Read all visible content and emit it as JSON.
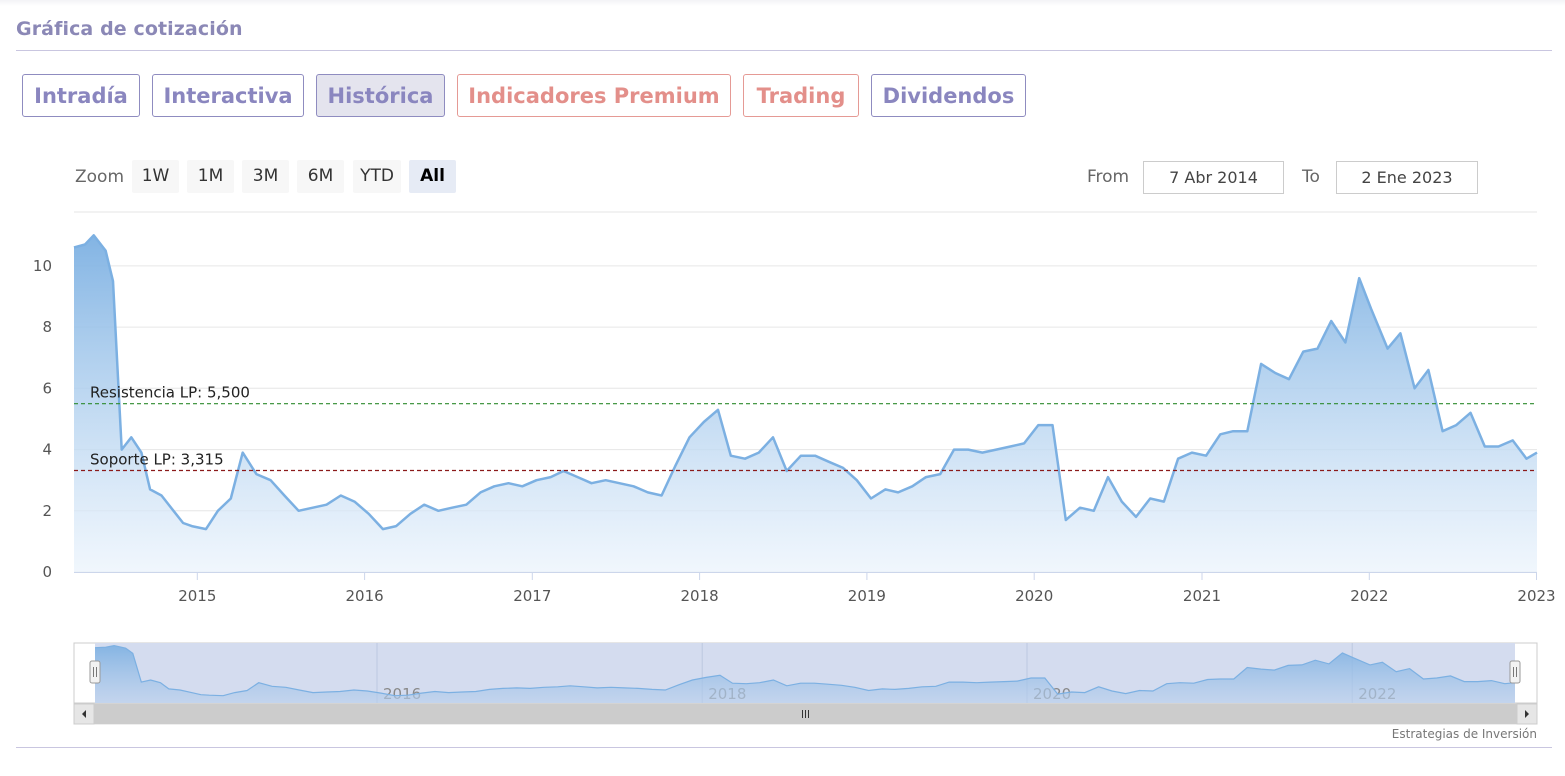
{
  "section": {
    "title": "Gráfica de cotización"
  },
  "tabs": [
    {
      "label": "Intradía",
      "active": false,
      "premium": false
    },
    {
      "label": "Interactiva",
      "active": false,
      "premium": false
    },
    {
      "label": "Histórica",
      "active": true,
      "premium": false
    },
    {
      "label": "Indicadores Premium",
      "active": false,
      "premium": true
    },
    {
      "label": "Trading",
      "active": false,
      "premium": true
    },
    {
      "label": "Dividendos",
      "active": false,
      "premium": false
    }
  ],
  "range_selector": {
    "zoom_label": "Zoom",
    "buttons": [
      "1W",
      "1M",
      "3M",
      "6M",
      "YTD",
      "All"
    ],
    "selected": "All",
    "from_label": "From",
    "from_value": "7 Abr 2014",
    "to_label": "To",
    "to_value": "2 Ene 2023"
  },
  "colors": {
    "accent": "#8a86bf",
    "premium": "#e38f8a",
    "series_line": "#7cb0e2",
    "series_fill": "#a9ccf0",
    "resistance_line": "#2e8b2e",
    "support_line": "#8b1a1a",
    "navigator_fill": "#d4dcef"
  },
  "chart_data": {
    "type": "area",
    "ylim": [
      0,
      11.5
    ],
    "yticks": [
      "0",
      "2",
      "4",
      "6",
      "8",
      "10"
    ],
    "xticks": [
      "2015",
      "2016",
      "2017",
      "2018",
      "2019",
      "2020",
      "2021",
      "2022",
      "2023"
    ],
    "x_range": [
      "2014-04-07",
      "2023-01-02"
    ],
    "series": [
      {
        "x": [
          "2014-04-07",
          "2014-05-01",
          "2014-05-20",
          "2014-06-15",
          "2014-07-01",
          "2014-07-20",
          "2014-08-10",
          "2014-09-01",
          "2014-09-20",
          "2014-10-15",
          "2014-11-10",
          "2014-12-01",
          "2014-12-20",
          "2015-01-20",
          "2015-02-15",
          "2015-03-15",
          "2015-04-10",
          "2015-05-10",
          "2015-06-10",
          "2015-07-10",
          "2015-08-10",
          "2015-09-10",
          "2015-10-10",
          "2015-11-10",
          "2015-12-10",
          "2016-01-10",
          "2016-02-10",
          "2016-03-10",
          "2016-04-10",
          "2016-05-10",
          "2016-06-10",
          "2016-07-10",
          "2016-08-10",
          "2016-09-10",
          "2016-10-10",
          "2016-11-10",
          "2016-12-10",
          "2017-01-10",
          "2017-02-10",
          "2017-03-10",
          "2017-04-10",
          "2017-05-10",
          "2017-06-10",
          "2017-07-10",
          "2017-08-10",
          "2017-09-10",
          "2017-10-10",
          "2017-11-10",
          "2017-12-10",
          "2018-01-10",
          "2018-02-10",
          "2018-03-10",
          "2018-04-10",
          "2018-05-10",
          "2018-06-10",
          "2018-07-10",
          "2018-08-10",
          "2018-09-10",
          "2018-10-10",
          "2018-11-10",
          "2018-12-10",
          "2019-01-10",
          "2019-02-10",
          "2019-03-10",
          "2019-04-10",
          "2019-05-10",
          "2019-06-10",
          "2019-07-10",
          "2019-08-10",
          "2019-09-10",
          "2019-10-10",
          "2019-11-10",
          "2019-12-10",
          "2020-01-10",
          "2020-02-10",
          "2020-03-10",
          "2020-04-10",
          "2020-05-10",
          "2020-06-10",
          "2020-07-10",
          "2020-08-10",
          "2020-09-10",
          "2020-10-10",
          "2020-11-10",
          "2020-12-10",
          "2021-01-10",
          "2021-02-10",
          "2021-03-10",
          "2021-04-10",
          "2021-05-10",
          "2021-06-10",
          "2021-07-10",
          "2021-08-10",
          "2021-09-10",
          "2021-10-10",
          "2021-11-10",
          "2021-12-10",
          "2022-01-05",
          "2022-02-10",
          "2022-03-10",
          "2022-04-10",
          "2022-05-10",
          "2022-06-10",
          "2022-07-10",
          "2022-08-10",
          "2022-09-10",
          "2022-10-10",
          "2022-11-10",
          "2022-12-10",
          "2023-01-02"
        ],
        "y": [
          10.6,
          10.7,
          11.0,
          10.5,
          9.5,
          4.0,
          4.4,
          3.9,
          2.7,
          2.5,
          2.0,
          1.6,
          1.5,
          1.4,
          2.0,
          2.4,
          3.9,
          3.2,
          3.0,
          2.5,
          2.0,
          2.1,
          2.2,
          2.5,
          2.3,
          1.9,
          1.4,
          1.5,
          1.9,
          2.2,
          2.0,
          2.1,
          2.2,
          2.6,
          2.8,
          2.9,
          2.8,
          3.0,
          3.1,
          3.3,
          3.1,
          2.9,
          3.0,
          2.9,
          2.8,
          2.6,
          2.5,
          3.5,
          4.4,
          4.9,
          5.3,
          3.8,
          3.7,
          3.9,
          4.4,
          3.3,
          3.8,
          3.8,
          3.6,
          3.4,
          3.0,
          2.4,
          2.7,
          2.6,
          2.8,
          3.1,
          3.2,
          4.0,
          4.0,
          3.9,
          4.0,
          4.1,
          4.2,
          4.8,
          4.8,
          1.7,
          2.1,
          2.0,
          3.1,
          2.3,
          1.8,
          2.4,
          2.3,
          3.7,
          3.9,
          3.8,
          4.5,
          4.6,
          4.6,
          6.8,
          6.5,
          6.3,
          7.2,
          7.3,
          8.2,
          7.5,
          9.6,
          8.6,
          7.3,
          7.8,
          6.0,
          6.6,
          4.6,
          4.8,
          5.2,
          4.1,
          4.1,
          4.3,
          3.7,
          3.9
        ]
      }
    ],
    "plot_lines": [
      {
        "label": "Resistencia LP: 5,500",
        "value": 5.5,
        "style": "dashed",
        "color": "#2e8b2e"
      },
      {
        "label": "Soporte LP: 3,315",
        "value": 3.315,
        "style": "dashed",
        "color": "#8b1a1a"
      }
    ],
    "navigator": {
      "labels": [
        "2016",
        "2018",
        "2020",
        "2022"
      ]
    }
  },
  "credits": "Estrategias de Inversión"
}
